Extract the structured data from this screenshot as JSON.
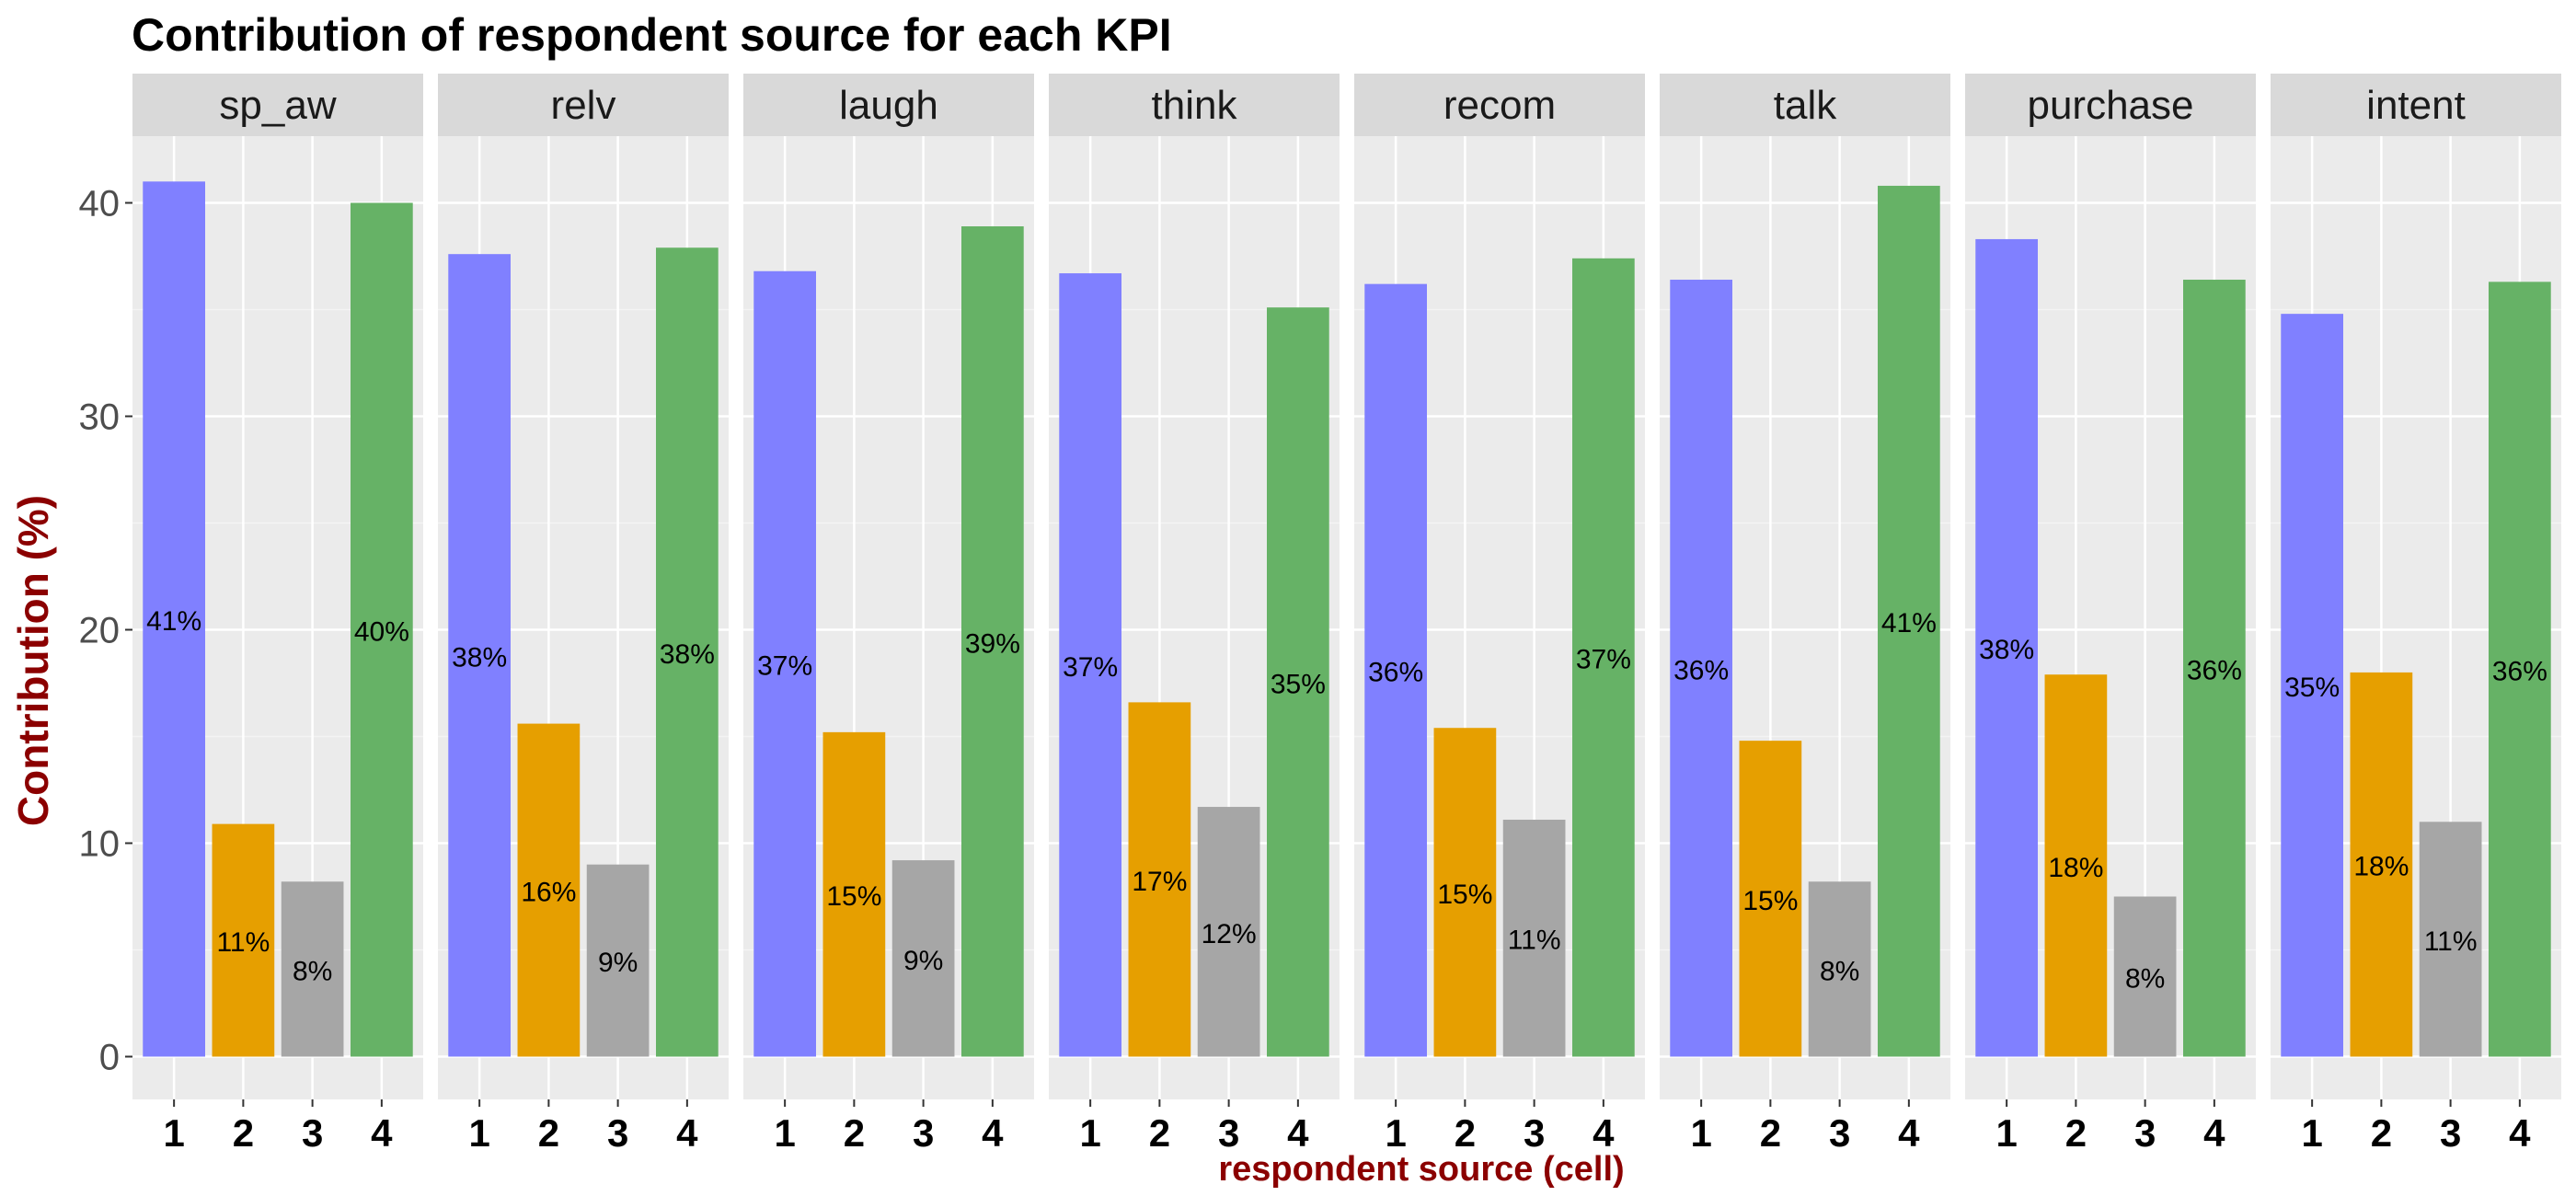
{
  "chart_data": {
    "type": "bar",
    "title": "Contribution of respondent source for each KPI",
    "xlabel": "respondent source (cell)",
    "ylabel": "Contribution (%)",
    "ylim": [
      0,
      45
    ],
    "yticks": [
      0,
      10,
      20,
      30,
      40
    ],
    "categories": [
      "1",
      "2",
      "3",
      "4"
    ],
    "category_colors": [
      "#8080ff",
      "#e69f00",
      "#a6a6a6",
      "#66b266"
    ],
    "label_color": "#8b0000",
    "grid": true,
    "facets": [
      {
        "name": "sp_aw",
        "values": [
          41.0,
          10.9,
          8.2,
          40.0
        ],
        "labels": [
          "41%",
          "11%",
          "8%",
          "40%"
        ]
      },
      {
        "name": "relv",
        "values": [
          37.6,
          15.6,
          9.0,
          37.9
        ],
        "labels": [
          "38%",
          "16%",
          "9%",
          "38%"
        ]
      },
      {
        "name": "laugh",
        "values": [
          36.8,
          15.2,
          9.2,
          38.9
        ],
        "labels": [
          "37%",
          "15%",
          "9%",
          "39%"
        ]
      },
      {
        "name": "think",
        "values": [
          36.7,
          16.6,
          11.7,
          35.1
        ],
        "labels": [
          "37%",
          "17%",
          "12%",
          "35%"
        ]
      },
      {
        "name": "recom",
        "values": [
          36.2,
          15.4,
          11.1,
          37.4
        ],
        "labels": [
          "36%",
          "15%",
          "11%",
          "37%"
        ]
      },
      {
        "name": "talk",
        "values": [
          36.4,
          14.8,
          8.2,
          40.8
        ],
        "labels": [
          "36%",
          "15%",
          "8%",
          "41%"
        ]
      },
      {
        "name": "purchase",
        "values": [
          38.3,
          17.9,
          7.5,
          36.4
        ],
        "labels": [
          "38%",
          "18%",
          "8%",
          "36%"
        ]
      },
      {
        "name": "intent",
        "values": [
          34.8,
          18.0,
          11.0,
          36.3
        ],
        "labels": [
          "35%",
          "18%",
          "11%",
          "36%"
        ]
      }
    ]
  }
}
